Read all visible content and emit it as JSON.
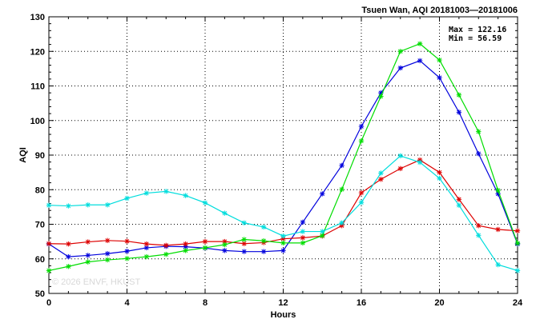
{
  "chart_data": {
    "type": "line",
    "title": "Tsuen Wan, AQI 20181003—20181006",
    "xlabel": "Hours",
    "ylabel": "AQI",
    "xlim": [
      0,
      24
    ],
    "ylim": [
      50,
      130
    ],
    "x_ticks": [
      0,
      4,
      8,
      12,
      16,
      20,
      24
    ],
    "y_ticks": [
      50,
      60,
      70,
      80,
      90,
      100,
      110,
      120,
      130
    ],
    "grid": true,
    "stats": {
      "max_label": "Max = 122.16",
      "min_label": "Min =  56.59"
    },
    "watermark": "© 2026 ENVF, HKUST",
    "x": [
      0,
      1,
      2,
      3,
      4,
      5,
      6,
      7,
      8,
      9,
      10,
      11,
      12,
      13,
      14,
      15,
      16,
      17,
      18,
      19,
      20,
      21,
      22,
      23,
      24
    ],
    "series": [
      {
        "color": "#0000dd",
        "values": [
          64.3,
          60.6,
          61.0,
          61.5,
          62.2,
          63.2,
          63.6,
          63.5,
          63.1,
          62.4,
          62.1,
          62.1,
          62.4,
          70.6,
          78.8,
          87.0,
          98.3,
          108.0,
          115.2,
          117.3,
          112.4,
          102.4,
          90.4,
          78.8,
          64.3
        ]
      },
      {
        "color": "#dd0000",
        "values": [
          64.4,
          64.3,
          64.9,
          65.3,
          65.1,
          64.3,
          63.9,
          64.3,
          65.0,
          65.0,
          64.4,
          64.7,
          65.8,
          66.1,
          66.6,
          69.6,
          79.1,
          83.0,
          86.1,
          88.6,
          85.0,
          77.2,
          69.6,
          68.5,
          68.1
        ]
      },
      {
        "color": "#00dd00",
        "values": [
          56.6,
          57.8,
          59.1,
          59.7,
          60.1,
          60.6,
          61.3,
          62.4,
          63.2,
          64.1,
          65.6,
          65.2,
          64.6,
          64.6,
          66.7,
          80.1,
          94.1,
          107.0,
          120.0,
          122.2,
          117.5,
          107.4,
          96.8,
          79.8,
          64.5
        ]
      },
      {
        "color": "#00dddd",
        "values": [
          75.5,
          75.3,
          75.6,
          75.6,
          77.5,
          79.0,
          79.5,
          78.3,
          76.2,
          73.2,
          70.4,
          69.2,
          66.6,
          67.9,
          67.9,
          70.4,
          76.3,
          84.8,
          89.8,
          87.9,
          83.3,
          75.5,
          66.8,
          58.3,
          56.6
        ]
      }
    ]
  }
}
